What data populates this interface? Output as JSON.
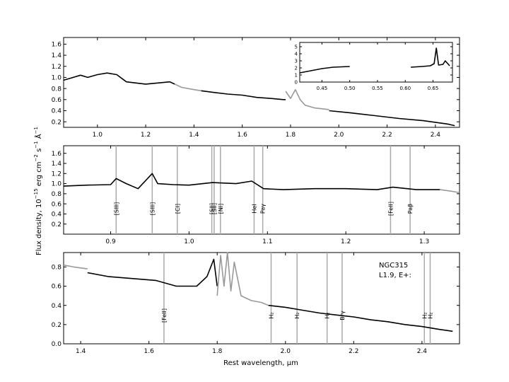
{
  "figure": {
    "ylabel_parts": [
      "Flux density, 10",
      "−15",
      " erg  cm",
      "−2",
      "  s",
      "−1",
      "  Å",
      "−1"
    ],
    "xlabel": "Rest wavelength, μm",
    "colors": {
      "observed": "#000000",
      "masked": "#999999",
      "lines": "#aaaaaa"
    }
  },
  "chart_data": [
    {
      "type": "line",
      "panel": "top",
      "xlim": [
        0.86,
        2.5
      ],
      "ylim": [
        0.1,
        1.72
      ],
      "xticks": [
        1.0,
        1.2,
        1.4,
        1.6,
        1.8,
        2.0,
        2.2,
        2.4
      ],
      "yticks": [
        0.2,
        0.4,
        0.6,
        0.8,
        1.0,
        1.2,
        1.4,
        1.6
      ],
      "xtick_labels": [
        "1.0",
        "1.2",
        "1.4",
        "1.6",
        "1.8",
        "2.0",
        "2.2",
        "2.4"
      ],
      "ytick_labels": [
        "0.2",
        "0.4",
        "0.6",
        "0.8",
        "1.0",
        "1.2",
        "1.4",
        "1.6"
      ],
      "series": [
        {
          "style": "observed",
          "x": [
            0.86,
            0.9,
            0.93,
            0.96,
            1.0,
            1.04,
            1.08,
            1.12,
            1.16,
            1.2,
            1.25,
            1.3,
            1.32
          ],
          "y": [
            0.95,
            1.0,
            1.04,
            1.0,
            1.05,
            1.08,
            1.05,
            0.92,
            0.9,
            0.88,
            0.9,
            0.92,
            0.88
          ]
        },
        {
          "style": "masked",
          "x": [
            1.32,
            1.35,
            1.4,
            1.43
          ],
          "y": [
            0.88,
            0.82,
            0.78,
            0.76
          ]
        },
        {
          "style": "observed",
          "x": [
            1.43,
            1.48,
            1.54,
            1.6,
            1.66,
            1.72,
            1.77,
            1.78
          ],
          "y": [
            0.76,
            0.73,
            0.7,
            0.68,
            0.64,
            0.62,
            0.6,
            0.6
          ]
        },
        {
          "style": "masked",
          "x": [
            1.78,
            1.8,
            1.82,
            1.84,
            1.86,
            1.9,
            1.96
          ],
          "y": [
            0.75,
            0.62,
            0.78,
            0.6,
            0.5,
            0.45,
            0.42
          ]
        },
        {
          "style": "observed",
          "x": [
            1.96,
            2.05,
            2.15,
            2.25,
            2.35,
            2.45,
            2.48
          ],
          "y": [
            0.4,
            0.36,
            0.31,
            0.26,
            0.22,
            0.16,
            0.13
          ]
        }
      ]
    },
    {
      "type": "line",
      "panel": "inset",
      "xlim": [
        0.41,
        0.685
      ],
      "ylim": [
        0,
        5.6
      ],
      "xticks": [
        0.45,
        0.5,
        0.55,
        0.6,
        0.65
      ],
      "yticks": [
        0,
        1,
        2,
        3,
        4,
        5
      ],
      "xtick_labels": [
        "0.45",
        "0.50",
        "0.55",
        "0.60",
        "0.65"
      ],
      "ytick_labels": [
        "0",
        "1",
        "2",
        "3",
        "4",
        "5"
      ],
      "series": [
        {
          "style": "observed",
          "x": [
            0.41,
            0.43,
            0.45,
            0.47,
            0.5
          ],
          "y": [
            1.3,
            1.6,
            1.9,
            2.1,
            2.2
          ]
        },
        {
          "style": "observed",
          "x": [
            0.61,
            0.63,
            0.645,
            0.652,
            0.656,
            0.66,
            0.668,
            0.672,
            0.68
          ],
          "y": [
            2.1,
            2.2,
            2.3,
            2.6,
            4.8,
            2.4,
            2.5,
            3.0,
            2.3
          ]
        }
      ]
    },
    {
      "type": "line",
      "panel": "middle",
      "xlim": [
        0.84,
        1.345
      ],
      "ylim": [
        0.0,
        1.75
      ],
      "xticks": [
        0.9,
        1.0,
        1.1,
        1.2,
        1.3
      ],
      "yticks": [
        0.2,
        0.4,
        0.6,
        0.8,
        1.0,
        1.2,
        1.4,
        1.6
      ],
      "xtick_labels": [
        "0.9",
        "1.0",
        "1.1",
        "1.2",
        "1.3"
      ],
      "ytick_labels": [
        "0.2",
        "0.4",
        "0.6",
        "0.8",
        "1.0",
        "1.2",
        "1.4",
        "1.6"
      ],
      "series": [
        {
          "style": "observed",
          "x": [
            0.84,
            0.87,
            0.9,
            0.907,
            0.92,
            0.935,
            0.953,
            0.96,
            0.98,
            1.0,
            1.03,
            1.06,
            1.08,
            1.095,
            1.12,
            1.16,
            1.2,
            1.24,
            1.26,
            1.29,
            1.32
          ],
          "y": [
            0.95,
            0.97,
            0.98,
            1.1,
            1.0,
            0.9,
            1.2,
            1.0,
            0.98,
            0.97,
            1.02,
            1.0,
            1.05,
            0.9,
            0.88,
            0.9,
            0.9,
            0.88,
            0.93,
            0.88,
            0.88
          ]
        },
        {
          "style": "masked",
          "x": [
            1.32,
            1.335,
            1.345
          ],
          "y": [
            0.88,
            0.85,
            0.82
          ]
        }
      ],
      "lines": [
        {
          "x": 0.907,
          "label": "[SIII]"
        },
        {
          "x": 0.953,
          "label": "[SIII]"
        },
        {
          "x": 0.985,
          "label": "[CI]"
        },
        {
          "x": 1.029,
          "label": "[SII]"
        },
        {
          "x": 1.032,
          "label": "[SII]"
        },
        {
          "x": 1.04,
          "label": "[NI]"
        },
        {
          "x": 1.083,
          "label": "HeI"
        },
        {
          "x": 1.094,
          "label": "Paγ"
        },
        {
          "x": 1.257,
          "label": "[FeII]"
        },
        {
          "x": 1.282,
          "label": "Paβ"
        }
      ]
    },
    {
      "type": "line",
      "panel": "bottom",
      "xlim": [
        1.35,
        2.51
      ],
      "ylim": [
        0.0,
        0.95
      ],
      "xticks": [
        1.4,
        1.6,
        1.8,
        2.0,
        2.2,
        2.4
      ],
      "yticks": [
        0.0,
        0.2,
        0.4,
        0.6,
        0.8
      ],
      "xtick_labels": [
        "1.4",
        "1.6",
        "1.8",
        "2.0",
        "2.2",
        "2.4"
      ],
      "ytick_labels": [
        "0.0",
        "0.2",
        "0.4",
        "0.6",
        "0.8"
      ],
      "series": [
        {
          "style": "masked",
          "x": [
            1.35,
            1.38,
            1.42
          ],
          "y": [
            0.82,
            0.8,
            0.78
          ]
        },
        {
          "style": "observed",
          "x": [
            1.42,
            1.48,
            1.55,
            1.62,
            1.68,
            1.74,
            1.77,
            1.79,
            1.8
          ],
          "y": [
            0.74,
            0.7,
            0.68,
            0.66,
            0.6,
            0.6,
            0.7,
            0.88,
            0.6
          ]
        },
        {
          "style": "masked",
          "x": [
            1.8,
            1.81,
            1.82,
            1.83,
            1.84,
            1.85,
            1.87,
            1.9,
            1.93,
            1.95
          ],
          "y": [
            0.5,
            0.92,
            0.6,
            0.95,
            0.55,
            0.85,
            0.5,
            0.45,
            0.43,
            0.4
          ]
        },
        {
          "style": "observed",
          "x": [
            1.95,
            2.0,
            2.05,
            2.1,
            2.15,
            2.2,
            2.25,
            2.3,
            2.35,
            2.4,
            2.45,
            2.49
          ],
          "y": [
            0.4,
            0.38,
            0.35,
            0.32,
            0.3,
            0.28,
            0.25,
            0.23,
            0.2,
            0.18,
            0.15,
            0.13
          ]
        }
      ],
      "lines": [
        {
          "x": 1.644,
          "label": "[FeII]"
        },
        {
          "x": 1.958,
          "label": "H₂"
        },
        {
          "x": 2.034,
          "label": "H₂"
        },
        {
          "x": 2.122,
          "label": "H₂"
        },
        {
          "x": 2.166,
          "label": "Brγ"
        },
        {
          "x": 2.407,
          "label": "H₂"
        },
        {
          "x": 2.424,
          "label": "H₂"
        }
      ],
      "annotations": [
        "NGC315",
        "L1.9,  E+:"
      ]
    }
  ]
}
